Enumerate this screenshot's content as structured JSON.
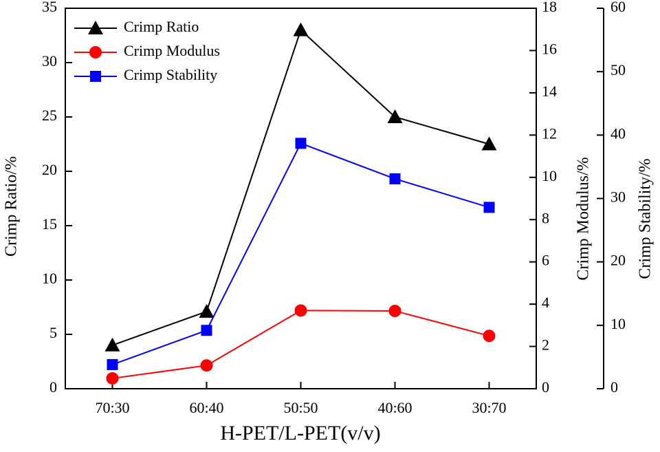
{
  "chart_data": {
    "type": "line",
    "xlabel": "H-PET/L-PET(v/v)",
    "ylabel": "Crimp Ratio/%",
    "y2label": "Crimp Modulus/%",
    "y3label": "Crimp Stability/%",
    "categories": [
      "70:30",
      "60:40",
      "50:50",
      "40:60",
      "30:70"
    ],
    "series": [
      {
        "name": "Crimp Ratio",
        "color": "#000000",
        "marker": "triangle",
        "axis": "y",
        "values": [
          4.0,
          7.1,
          33.0,
          25.0,
          22.5
        ]
      },
      {
        "name": "Crimp Modulus",
        "color": "#ff0000",
        "marker": "circle",
        "axis": "y2",
        "values": [
          0.49,
          1.1,
          3.7,
          3.68,
          2.5
        ]
      },
      {
        "name": "Crimp Stability",
        "color": "#0000ff",
        "marker": "square",
        "axis": "y3",
        "values": [
          3.8,
          9.2,
          38.7,
          33.1,
          28.6
        ]
      }
    ],
    "ylim": [
      0,
      35
    ],
    "yticks": [
      0,
      5,
      10,
      15,
      20,
      25,
      30,
      35
    ],
    "y2lim": [
      0,
      18
    ],
    "y2ticks": [
      0,
      2,
      4,
      6,
      8,
      10,
      12,
      14,
      16,
      18
    ],
    "y3lim": [
      0,
      60
    ],
    "y3ticks": [
      0,
      10,
      20,
      30,
      40,
      50,
      60
    ]
  }
}
